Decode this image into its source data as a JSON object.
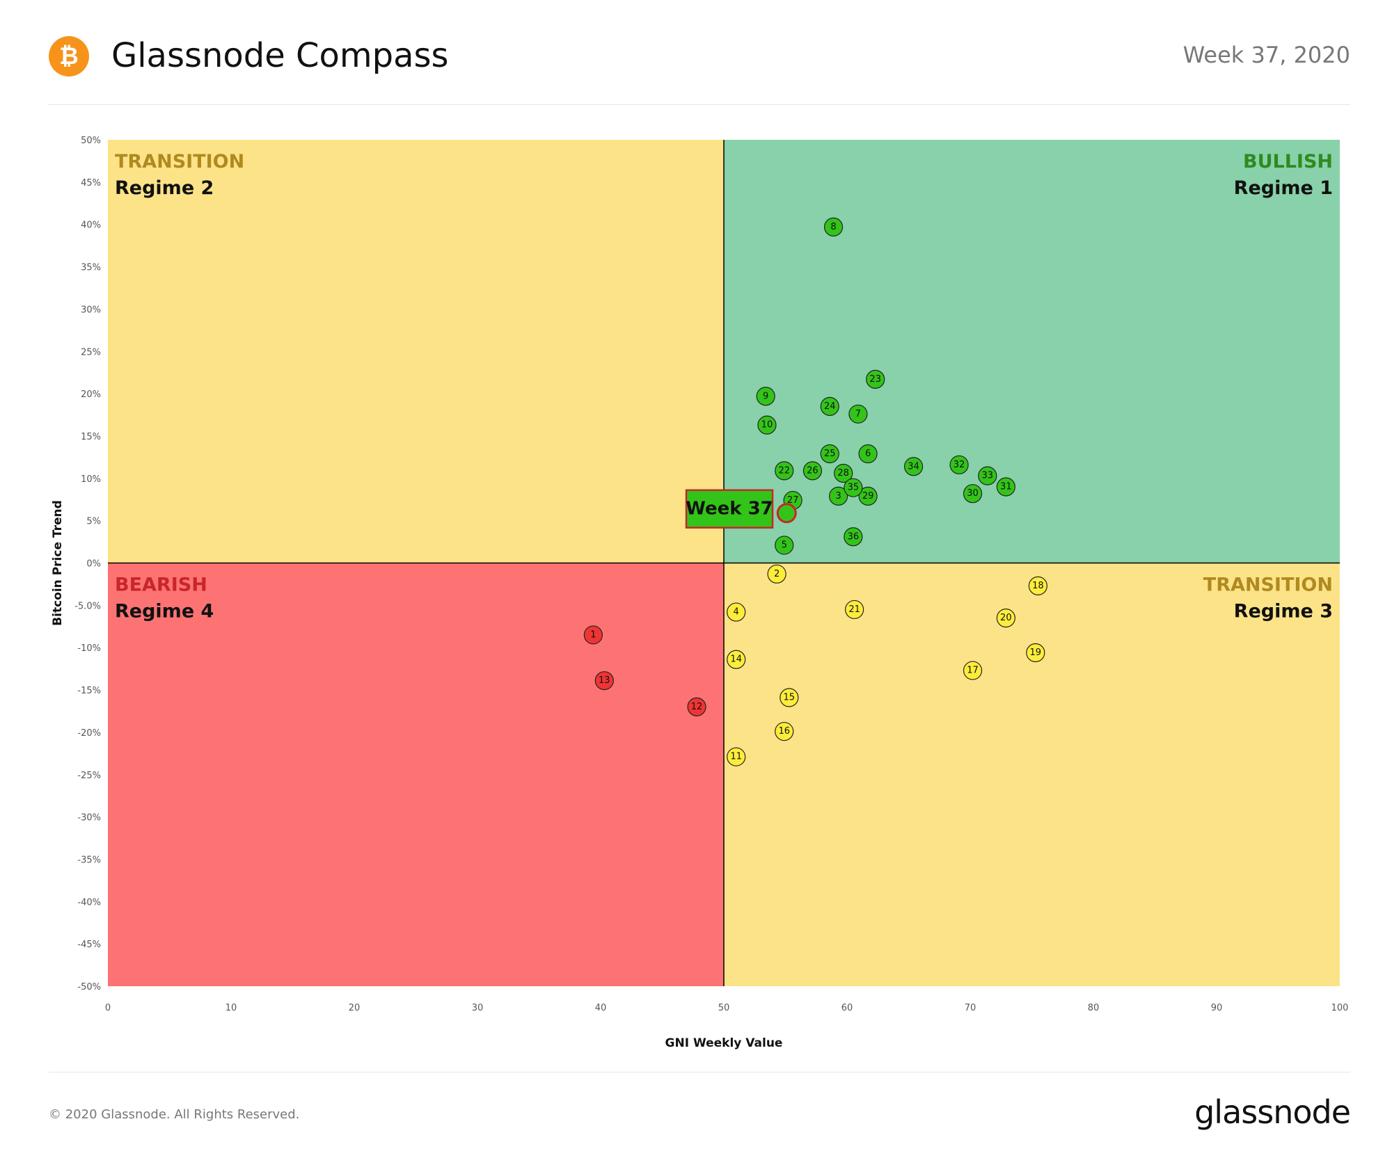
{
  "header": {
    "logo_symbol": "₿",
    "title": "Glassnode Compass",
    "week_label": "Week 37, 2020"
  },
  "footer": {
    "copyright": "© 2020 Glassnode. All Rights Reserved.",
    "brand": "glassnode"
  },
  "colors": {
    "bullish": "#88d1aa",
    "transition": "#fde388",
    "bearish": "#fd7373",
    "bullish_point": "#33c419",
    "transition_point": "#fded3a",
    "bearish_point": "#ef3434",
    "bullish_text": "#2e8b1f",
    "transition_text": "#b08a1f",
    "bearish_text": "#c8262b",
    "brand_orange": "#f7931a"
  },
  "chart_data": {
    "type": "scatter",
    "xlabel": "GNI  Weekly Value",
    "ylabel": "Bitcoin  Price Trend",
    "xlim": [
      0,
      100
    ],
    "ylim": [
      -50,
      50
    ],
    "x_ticks": [
      0,
      10,
      20,
      30,
      40,
      50,
      60,
      70,
      80,
      90,
      100
    ],
    "y_ticks": [
      {
        "v": 50,
        "label": "50%"
      },
      {
        "v": 45,
        "label": "45%"
      },
      {
        "v": 40,
        "label": "40%"
      },
      {
        "v": 35,
        "label": "35%"
      },
      {
        "v": 30,
        "label": "30%"
      },
      {
        "v": 25,
        "label": "25%"
      },
      {
        "v": 20,
        "label": "20%"
      },
      {
        "v": 15,
        "label": "15%"
      },
      {
        "v": 10,
        "label": "10%"
      },
      {
        "v": 5,
        "label": "5%"
      },
      {
        "v": 0,
        "label": "0%"
      },
      {
        "v": -5,
        "label": "-5.0%"
      },
      {
        "v": -10,
        "label": "-10%"
      },
      {
        "v": -15,
        "label": "-15%"
      },
      {
        "v": -20,
        "label": "-20%"
      },
      {
        "v": -25,
        "label": "-25%"
      },
      {
        "v": -30,
        "label": "-30%"
      },
      {
        "v": -35,
        "label": "-35%"
      },
      {
        "v": -40,
        "label": "-40%"
      },
      {
        "v": -45,
        "label": "-45%"
      },
      {
        "v": -50,
        "label": "-50%"
      }
    ],
    "quadrants": [
      {
        "name": "TRANSITION",
        "regime": "Regime 2",
        "position": "top-left"
      },
      {
        "name": "BULLISH",
        "regime": "Regime 1",
        "position": "top-right"
      },
      {
        "name": "BEARISH",
        "regime": "Regime 4",
        "position": "bottom-left"
      },
      {
        "name": "TRANSITION",
        "regime": "Regime 3",
        "position": "bottom-right"
      }
    ],
    "points": [
      {
        "label": "1",
        "x": 39.4,
        "y": -8.5
      },
      {
        "label": "2",
        "x": 54.3,
        "y": -1.3
      },
      {
        "label": "3",
        "x": 59.3,
        "y": 7.9
      },
      {
        "label": "4",
        "x": 51.0,
        "y": -5.8
      },
      {
        "label": "5",
        "x": 54.9,
        "y": 2.1
      },
      {
        "label": "6",
        "x": 61.7,
        "y": 12.9
      },
      {
        "label": "7",
        "x": 60.9,
        "y": 17.6
      },
      {
        "label": "8",
        "x": 58.9,
        "y": 39.7
      },
      {
        "label": "9",
        "x": 53.4,
        "y": 19.7
      },
      {
        "label": "10",
        "x": 53.5,
        "y": 16.3
      },
      {
        "label": "11",
        "x": 51.0,
        "y": -22.9
      },
      {
        "label": "12",
        "x": 47.8,
        "y": -17.0
      },
      {
        "label": "13",
        "x": 40.3,
        "y": -13.9
      },
      {
        "label": "14",
        "x": 51.0,
        "y": -11.4
      },
      {
        "label": "15",
        "x": 55.3,
        "y": -15.9
      },
      {
        "label": "16",
        "x": 54.9,
        "y": -19.9
      },
      {
        "label": "17",
        "x": 70.2,
        "y": -12.7
      },
      {
        "label": "18",
        "x": 75.5,
        "y": -2.7
      },
      {
        "label": "19",
        "x": 75.3,
        "y": -10.6
      },
      {
        "label": "20",
        "x": 72.9,
        "y": -6.5
      },
      {
        "label": "21",
        "x": 60.6,
        "y": -5.5
      },
      {
        "label": "22",
        "x": 54.9,
        "y": 10.9
      },
      {
        "label": "23",
        "x": 62.3,
        "y": 21.7
      },
      {
        "label": "24",
        "x": 58.6,
        "y": 18.5
      },
      {
        "label": "25",
        "x": 58.6,
        "y": 12.9
      },
      {
        "label": "26",
        "x": 57.2,
        "y": 10.9
      },
      {
        "label": "27",
        "x": 55.6,
        "y": 7.4
      },
      {
        "label": "28",
        "x": 59.7,
        "y": 10.6
      },
      {
        "label": "29",
        "x": 61.7,
        "y": 7.9
      },
      {
        "label": "30",
        "x": 70.2,
        "y": 8.2
      },
      {
        "label": "31",
        "x": 72.9,
        "y": 9.0
      },
      {
        "label": "32",
        "x": 69.1,
        "y": 11.6
      },
      {
        "label": "33",
        "x": 71.4,
        "y": 10.3
      },
      {
        "label": "34",
        "x": 65.4,
        "y": 11.4
      },
      {
        "label": "35",
        "x": 60.5,
        "y": 8.9
      },
      {
        "label": "36",
        "x": 60.5,
        "y": 3.1
      }
    ],
    "current": {
      "label": "Week 37",
      "x": 55.1,
      "y": 5.9
    }
  }
}
